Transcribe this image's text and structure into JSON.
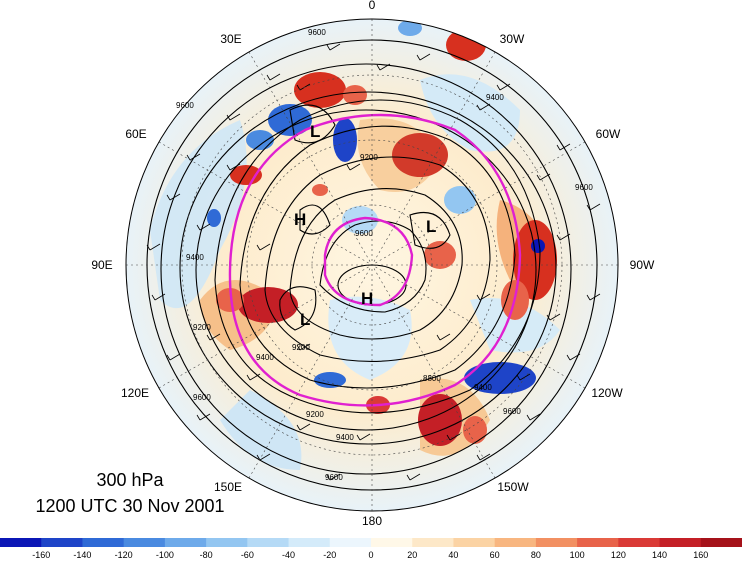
{
  "caption": {
    "level": "300 hPa",
    "time": "1200 UTC 30 Nov 2001"
  },
  "longitude_labels": [
    "0",
    "30W",
    "60W",
    "90W",
    "120W",
    "150W",
    "180",
    "150E",
    "120E",
    "90E",
    "60E",
    "30E"
  ],
  "contour_labels": [
    "9600",
    "9600",
    "9600",
    "9600",
    "9200",
    "9200",
    "9200",
    "9200",
    "9400",
    "9400",
    "9400",
    "9400",
    "8800",
    "9600",
    "9600",
    "9600",
    "9400"
  ],
  "pressure_centers": [
    {
      "label": "L"
    },
    {
      "label": "H"
    },
    {
      "label": "L"
    },
    {
      "label": "H"
    },
    {
      "label": "L"
    }
  ],
  "colors": {
    "contour": "#000000",
    "highlight_contour": "#e020d0",
    "positive": "#d7301f",
    "negative": "#2166ac"
  },
  "colorbar": {
    "tick_labels": [
      "-160",
      "-140",
      "-120",
      "-100",
      "-80",
      "-60",
      "-40",
      "-20",
      "0",
      "20",
      "40",
      "60",
      "80",
      "100",
      "120",
      "140",
      "160"
    ],
    "colors": [
      "#0b16b6",
      "#1e44c8",
      "#2f6ad6",
      "#4a8ae0",
      "#6eaaea",
      "#93c6f1",
      "#b5daf6",
      "#d4ebfa",
      "#ecf6fd",
      "#fff8e8",
      "#fde8c8",
      "#fbd3a4",
      "#f8b680",
      "#f29062",
      "#e8634a",
      "#da3a36",
      "#c41f26",
      "#a5121a"
    ]
  }
}
